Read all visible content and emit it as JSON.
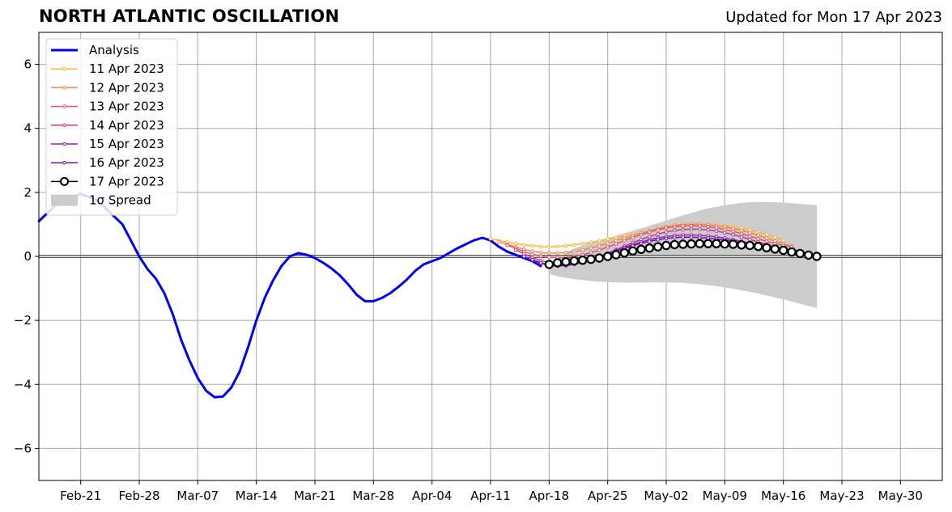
{
  "header": {
    "title": "NORTH ATLANTIC OSCILLATION",
    "updated": "Updated for Mon 17 Apr 2023"
  },
  "chart_data": {
    "type": "line",
    "title": "NORTH ATLANTIC OSCILLATION",
    "xlabel": "",
    "ylabel": "",
    "xlim": [
      "2023-02-16",
      "2023-06-04"
    ],
    "ylim": [
      -7,
      7
    ],
    "grid": true,
    "legend_position": "top-left",
    "x_ticks": [
      "Feb-21",
      "Feb-28",
      "Mar-07",
      "Mar-14",
      "Mar-21",
      "Mar-28",
      "Apr-04",
      "Apr-11",
      "Apr-18",
      "Apr-25",
      "May-02",
      "May-09",
      "May-16",
      "May-23",
      "May-30"
    ],
    "y_ticks": [
      "6",
      "4",
      "2",
      "0",
      "−2",
      "−4",
      "−6"
    ],
    "analysis": {
      "name": "Analysis",
      "color": "#0000ee",
      "x": [
        "2023-02-16",
        "2023-02-18",
        "2023-02-21",
        "2023-02-23",
        "2023-02-25",
        "2023-02-26",
        "2023-02-28",
        "2023-03-01",
        "2023-03-02",
        "2023-03-03",
        "2023-03-04",
        "2023-03-05",
        "2023-03-06",
        "2023-03-07",
        "2023-03-08",
        "2023-03-09",
        "2023-03-10",
        "2023-03-11",
        "2023-03-12",
        "2023-03-13",
        "2023-03-14",
        "2023-03-15",
        "2023-03-16",
        "2023-03-17",
        "2023-03-18",
        "2023-03-19",
        "2023-03-20",
        "2023-03-21",
        "2023-03-22",
        "2023-03-23",
        "2023-03-24",
        "2023-03-25",
        "2023-03-26",
        "2023-03-27",
        "2023-03-28",
        "2023-03-29",
        "2023-03-30",
        "2023-03-31",
        "2023-04-01",
        "2023-04-02",
        "2023-04-03",
        "2023-04-05",
        "2023-04-07",
        "2023-04-09",
        "2023-04-10",
        "2023-04-11",
        "2023-04-12",
        "2023-04-13",
        "2023-04-14",
        "2023-04-15",
        "2023-04-16",
        "2023-04-17"
      ],
      "y": [
        1.1,
        1.6,
        1.95,
        1.75,
        1.25,
        1.0,
        0.0,
        -0.4,
        -0.7,
        -1.15,
        -1.8,
        -2.6,
        -3.25,
        -3.8,
        -4.2,
        -4.4,
        -4.38,
        -4.1,
        -3.6,
        -2.85,
        -2.0,
        -1.3,
        -0.75,
        -0.3,
        0.0,
        0.1,
        0.05,
        -0.05,
        -0.2,
        -0.38,
        -0.6,
        -0.88,
        -1.2,
        -1.4,
        -1.4,
        -1.3,
        -1.15,
        -0.95,
        -0.72,
        -0.45,
        -0.25,
        -0.05,
        0.25,
        0.5,
        0.58,
        0.5,
        0.3,
        0.15,
        0.05,
        -0.05,
        -0.15,
        -0.3
      ]
    },
    "forecasts": [
      {
        "name": "11 Apr 2023",
        "color": "#f7b733",
        "start": "2023-04-11",
        "end": "2023-05-16",
        "y": [
          0.55,
          0.5,
          0.45,
          0.4,
          0.36,
          0.33,
          0.31,
          0.3,
          0.31,
          0.33,
          0.36,
          0.4,
          0.44,
          0.49,
          0.54,
          0.59,
          0.64,
          0.69,
          0.74,
          0.79,
          0.84,
          0.88,
          0.92,
          0.95,
          0.97,
          0.98,
          0.98,
          0.97,
          0.95,
          0.92,
          0.88,
          0.83,
          0.77,
          0.69,
          0.6,
          0.5
        ]
      },
      {
        "name": "12 Apr 2023",
        "color": "#f4854a",
        "start": "2023-04-12",
        "end": "2023-05-17",
        "y": [
          0.45,
          0.38,
          0.3,
          0.22,
          0.16,
          0.12,
          0.1,
          0.1,
          0.12,
          0.15,
          0.2,
          0.26,
          0.33,
          0.41,
          0.49,
          0.57,
          0.65,
          0.73,
          0.8,
          0.87,
          0.93,
          0.97,
          1.0,
          1.01,
          1.01,
          0.99,
          0.96,
          0.92,
          0.87,
          0.81,
          0.74,
          0.66,
          0.57,
          0.48,
          0.4,
          0.32
        ]
      },
      {
        "name": "13 Apr 2023",
        "color": "#e0566e",
        "start": "2023-04-13",
        "end": "2023-05-17",
        "y": [
          0.35,
          0.25,
          0.15,
          0.07,
          0.01,
          -0.03,
          -0.04,
          -0.03,
          0.0,
          0.05,
          0.12,
          0.2,
          0.29,
          0.39,
          0.49,
          0.59,
          0.68,
          0.76,
          0.83,
          0.89,
          0.93,
          0.95,
          0.96,
          0.95,
          0.93,
          0.89,
          0.84,
          0.78,
          0.71,
          0.63,
          0.55,
          0.47,
          0.4,
          0.34,
          0.3
        ]
      },
      {
        "name": "14 Apr 2023",
        "color": "#c03a8a",
        "start": "2023-04-14",
        "end": "2023-05-18",
        "y": [
          0.2,
          0.08,
          -0.04,
          -0.13,
          -0.19,
          -0.22,
          -0.23,
          -0.21,
          -0.16,
          -0.09,
          0.0,
          0.1,
          0.21,
          0.32,
          0.43,
          0.53,
          0.62,
          0.7,
          0.76,
          0.81,
          0.84,
          0.85,
          0.85,
          0.83,
          0.79,
          0.74,
          0.68,
          0.61,
          0.53,
          0.45,
          0.37,
          0.3,
          0.24,
          0.2,
          0.18
        ]
      },
      {
        "name": "15 Apr 2023",
        "color": "#9a1cb4",
        "start": "2023-04-15",
        "end": "2023-05-19",
        "y": [
          0.0,
          -0.12,
          -0.22,
          -0.28,
          -0.3,
          -0.29,
          -0.25,
          -0.19,
          -0.11,
          -0.02,
          0.08,
          0.18,
          0.28,
          0.37,
          0.45,
          0.52,
          0.58,
          0.62,
          0.65,
          0.67,
          0.67,
          0.66,
          0.64,
          0.61,
          0.57,
          0.52,
          0.47,
          0.41,
          0.35,
          0.29,
          0.23,
          0.18,
          0.14,
          0.11,
          0.1
        ]
      },
      {
        "name": "16 Apr 2023",
        "color": "#6a0fb0",
        "start": "2023-04-16",
        "end": "2023-05-19",
        "y": [
          -0.1,
          -0.2,
          -0.26,
          -0.28,
          -0.27,
          -0.23,
          -0.17,
          -0.1,
          -0.02,
          0.07,
          0.16,
          0.25,
          0.33,
          0.41,
          0.47,
          0.52,
          0.56,
          0.59,
          0.6,
          0.6,
          0.59,
          0.57,
          0.54,
          0.51,
          0.47,
          0.42,
          0.37,
          0.32,
          0.27,
          0.22,
          0.17,
          0.13,
          0.1,
          0.08
        ]
      },
      {
        "name": "17 Apr 2023",
        "color": "#000000",
        "marker": "open-circle",
        "start": "2023-04-18",
        "end": "2023-05-20",
        "y": [
          -0.25,
          -0.2,
          -0.17,
          -0.14,
          -0.12,
          -0.09,
          -0.05,
          0.0,
          0.05,
          0.11,
          0.17,
          0.22,
          0.26,
          0.3,
          0.34,
          0.37,
          0.38,
          0.39,
          0.4,
          0.4,
          0.4,
          0.39,
          0.38,
          0.36,
          0.34,
          0.31,
          0.27,
          0.23,
          0.19,
          0.14,
          0.09,
          0.04,
          0.0
        ]
      }
    ],
    "spread": {
      "name": "1σ Spread",
      "color": "#cccccc",
      "start": "2023-04-18",
      "end": "2023-05-20",
      "upper": [
        -0.25,
        -0.05,
        0.12,
        0.25,
        0.35,
        0.43,
        0.5,
        0.57,
        0.64,
        0.72,
        0.8,
        0.88,
        0.96,
        1.04,
        1.12,
        1.2,
        1.28,
        1.36,
        1.43,
        1.5,
        1.55,
        1.6,
        1.64,
        1.67,
        1.69,
        1.7,
        1.7,
        1.69,
        1.68,
        1.66,
        1.64,
        1.62,
        1.6
      ],
      "lower": [
        -0.55,
        -0.62,
        -0.67,
        -0.71,
        -0.74,
        -0.77,
        -0.79,
        -0.8,
        -0.81,
        -0.82,
        -0.82,
        -0.82,
        -0.81,
        -0.81,
        -0.81,
        -0.82,
        -0.83,
        -0.85,
        -0.87,
        -0.9,
        -0.93,
        -0.97,
        -1.01,
        -1.06,
        -1.11,
        -1.16,
        -1.22,
        -1.28,
        -1.34,
        -1.41,
        -1.48,
        -1.55,
        -1.62
      ]
    }
  }
}
